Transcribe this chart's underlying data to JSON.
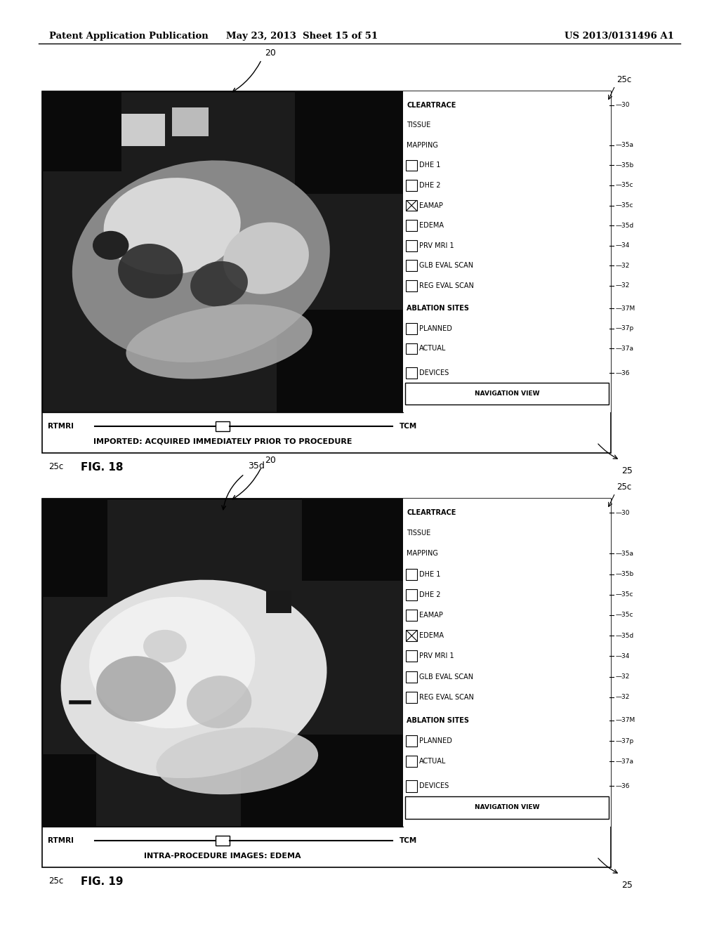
{
  "bg_color": "#ffffff",
  "header_left": "Patent Application Publication",
  "header_mid": "May 23, 2013  Sheet 15 of 51",
  "header_right": "US 2013/0131496 A1",
  "fig18": {
    "fig_label": "FIG. 18",
    "slider_left": "RTMRI",
    "slider_right": "TCM",
    "caption": "IMPORTED: ACQUIRED IMMEDIATELY PRIOR TO PROCEDURE",
    "checked_item": "EAMAP",
    "sidebar_items": [
      {
        "text": "CLEARTRACE",
        "bold": true,
        "ref": "30",
        "boxed": false
      },
      {
        "text": "TISSUE",
        "bold": false,
        "ref": "",
        "boxed": false
      },
      {
        "text": "MAPPING",
        "bold": false,
        "ref": "35a",
        "boxed": false
      },
      {
        "text": "DHE 1",
        "bold": false,
        "ref": "35b",
        "boxed": false,
        "checked": false
      },
      {
        "text": "DHE 2",
        "bold": false,
        "ref": "35c",
        "boxed": false,
        "checked": false
      },
      {
        "text": "EAMAP",
        "bold": false,
        "ref": "35c",
        "boxed": false,
        "checked": true
      },
      {
        "text": "EDEMA",
        "bold": false,
        "ref": "35d",
        "boxed": false,
        "checked": false
      },
      {
        "text": "PRV MRI 1",
        "bold": false,
        "ref": "34",
        "boxed": false,
        "checked": false
      },
      {
        "text": "GLB EVAL SCAN",
        "bold": false,
        "ref": "32",
        "boxed": false,
        "checked": false
      },
      {
        "text": "REG EVAL SCAN",
        "bold": false,
        "ref": "32",
        "boxed": false,
        "checked": false
      },
      {
        "text": "ABLATION SITES",
        "bold": true,
        "ref": "37M",
        "boxed": false
      },
      {
        "text": "PLANNED",
        "bold": false,
        "ref": "37p",
        "boxed": false,
        "checked": false
      },
      {
        "text": "ACTUAL",
        "bold": false,
        "ref": "37a",
        "boxed": false,
        "checked": false
      },
      {
        "text": "DEVICES",
        "bold": false,
        "ref": "36",
        "boxed": false,
        "checked": false
      },
      {
        "text": "NAVIGATION VIEW",
        "bold": true,
        "ref": "",
        "boxed": true
      }
    ]
  },
  "fig19": {
    "fig_label": "FIG. 19",
    "slider_left": "RTMRI",
    "slider_right": "TCM",
    "caption": "INTRA-PROCEDURE IMAGES: EDEMA",
    "checked_item": "EDEMA",
    "sidebar_items": [
      {
        "text": "CLEARTRACE",
        "bold": true,
        "ref": "30",
        "boxed": false
      },
      {
        "text": "TISSUE",
        "bold": false,
        "ref": "",
        "boxed": false
      },
      {
        "text": "MAPPING",
        "bold": false,
        "ref": "35a",
        "boxed": false
      },
      {
        "text": "DHE 1",
        "bold": false,
        "ref": "35b",
        "boxed": false,
        "checked": false
      },
      {
        "text": "DHE 2",
        "bold": false,
        "ref": "35c",
        "boxed": false,
        "checked": false
      },
      {
        "text": "EAMAP",
        "bold": false,
        "ref": "35c",
        "boxed": false,
        "checked": false
      },
      {
        "text": "EDEMA",
        "bold": false,
        "ref": "35d",
        "boxed": false,
        "checked": true
      },
      {
        "text": "PRV MRI 1",
        "bold": false,
        "ref": "34",
        "boxed": false,
        "checked": false
      },
      {
        "text": "GLB EVAL SCAN",
        "bold": false,
        "ref": "32",
        "boxed": false,
        "checked": false
      },
      {
        "text": "REG EVAL SCAN",
        "bold": false,
        "ref": "32",
        "boxed": false,
        "checked": false
      },
      {
        "text": "ABLATION SITES",
        "bold": true,
        "ref": "37M",
        "boxed": false
      },
      {
        "text": "PLANNED",
        "bold": false,
        "ref": "37p",
        "boxed": false,
        "checked": false
      },
      {
        "text": "ACTUAL",
        "bold": false,
        "ref": "37a",
        "boxed": false,
        "checked": false
      },
      {
        "text": "DEVICES",
        "bold": false,
        "ref": "36",
        "boxed": false,
        "checked": false
      },
      {
        "text": "NAVIGATION VIEW",
        "bold": true,
        "ref": "",
        "boxed": true
      }
    ]
  }
}
